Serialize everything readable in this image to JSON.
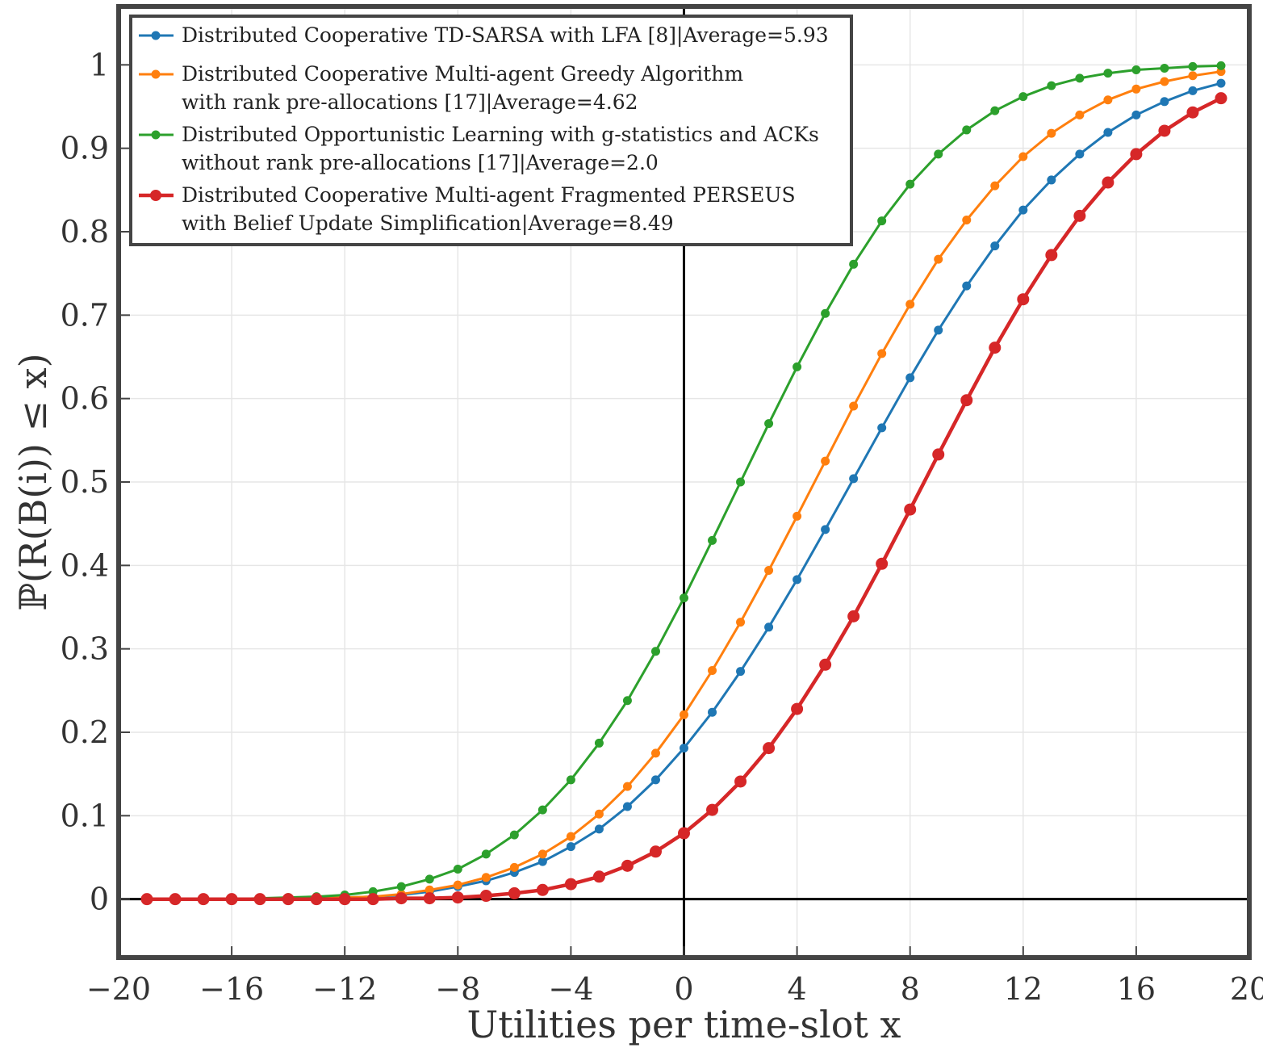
{
  "chart_data": {
    "type": "line",
    "xlabel": "Utilities per time-slot x",
    "ylabel": "ℙ(R(B(i)) ≤ x)",
    "xlim": [
      -20,
      20
    ],
    "ylim": [
      -0.07,
      1.07
    ],
    "xticks": [
      -20,
      -16,
      -12,
      -8,
      -4,
      0,
      4,
      8,
      12,
      16,
      20
    ],
    "xtick_labels": [
      "−20",
      "−16",
      "−12",
      "−8",
      "−4",
      "0",
      "4",
      "8",
      "12",
      "16",
      "20"
    ],
    "yticks": [
      0,
      0.1,
      0.2,
      0.3,
      0.4,
      0.5,
      0.6,
      0.7,
      0.8,
      0.9,
      1
    ],
    "ytick_labels": [
      "0",
      "0.1",
      "0.2",
      "0.3",
      "0.4",
      "0.5",
      "0.6",
      "0.7",
      "0.8",
      "0.9",
      "1"
    ],
    "grid": true,
    "legend_position": "top-left",
    "x": [
      -19,
      -18,
      -17,
      -16,
      -15,
      -14,
      -13,
      -12,
      -11,
      -10,
      -9,
      -8,
      -7,
      -6,
      -5,
      -4,
      -3,
      -2,
      -1,
      0,
      1,
      2,
      3,
      4,
      5,
      6,
      7,
      8,
      9,
      10,
      11,
      12,
      13,
      14,
      15,
      16,
      17,
      18,
      19
    ],
    "series": [
      {
        "name": "Distributed Cooperative TD-SARSA with LFA [8]|Average=5.93",
        "legend_lines": [
          "Distributed Cooperative TD-SARSA with LFA [8]|Average=5.93"
        ],
        "color": "#1f77b4",
        "values": [
          0.0,
          0.0,
          0.0,
          0.0,
          0.0,
          0.0,
          0.001,
          0.002,
          0.003,
          0.005,
          0.009,
          0.015,
          0.022,
          0.032,
          0.045,
          0.063,
          0.084,
          0.111,
          0.143,
          0.181,
          0.224,
          0.273,
          0.326,
          0.383,
          0.443,
          0.504,
          0.565,
          0.625,
          0.682,
          0.735,
          0.783,
          0.826,
          0.862,
          0.893,
          0.919,
          0.94,
          0.956,
          0.969,
          0.978
        ]
      },
      {
        "name": "Distributed Cooperative Multi-agent Greedy Algorithm with rank pre-allocations [17]|Average=4.62",
        "legend_lines": [
          "Distributed Cooperative Multi-agent Greedy Algorithm",
          "with rank pre-allocations [17]|Average=4.62"
        ],
        "color": "#ff7f0e",
        "values": [
          0.0,
          0.0,
          0.0,
          0.0,
          0.0,
          0.0,
          0.001,
          0.002,
          0.003,
          0.006,
          0.011,
          0.017,
          0.026,
          0.038,
          0.054,
          0.075,
          0.102,
          0.135,
          0.175,
          0.221,
          0.274,
          0.332,
          0.394,
          0.459,
          0.525,
          0.591,
          0.654,
          0.713,
          0.767,
          0.814,
          0.855,
          0.89,
          0.918,
          0.94,
          0.958,
          0.971,
          0.98,
          0.987,
          0.992
        ]
      },
      {
        "name": "Distributed Opportunistic Learning with g-statistics and ACKs without rank pre-allocations [17]|Average=2.0",
        "legend_lines": [
          "Distributed Opportunistic Learning with g-statistics and ACKs",
          "without rank pre-allocations [17]|Average=2.0"
        ],
        "color": "#2ca02c",
        "values": [
          0.0,
          0.0,
          0.0,
          0.0,
          0.001,
          0.002,
          0.003,
          0.005,
          0.009,
          0.015,
          0.024,
          0.036,
          0.054,
          0.077,
          0.107,
          0.143,
          0.187,
          0.238,
          0.297,
          0.361,
          0.43,
          0.5,
          0.57,
          0.638,
          0.702,
          0.761,
          0.813,
          0.857,
          0.893,
          0.922,
          0.945,
          0.962,
          0.975,
          0.984,
          0.99,
          0.994,
          0.996,
          0.998,
          0.999
        ]
      },
      {
        "name": "Distributed Cooperative Multi-agent Fragmented PERSEUS with Belief Update Simplification|Average=8.49",
        "legend_lines": [
          "Distributed Cooperative Multi-agent Fragmented PERSEUS",
          "with Belief Update Simplification|Average=8.49"
        ],
        "color": "#d62728",
        "values": [
          0.0,
          0.0,
          0.0,
          0.0,
          0.0,
          0.0,
          0.0,
          0.0,
          0.0,
          0.001,
          0.001,
          0.002,
          0.004,
          0.007,
          0.011,
          0.018,
          0.027,
          0.04,
          0.057,
          0.079,
          0.107,
          0.141,
          0.181,
          0.228,
          0.281,
          0.339,
          0.402,
          0.467,
          0.533,
          0.598,
          0.661,
          0.719,
          0.772,
          0.819,
          0.859,
          0.893,
          0.921,
          0.943,
          0.96
        ]
      }
    ]
  }
}
